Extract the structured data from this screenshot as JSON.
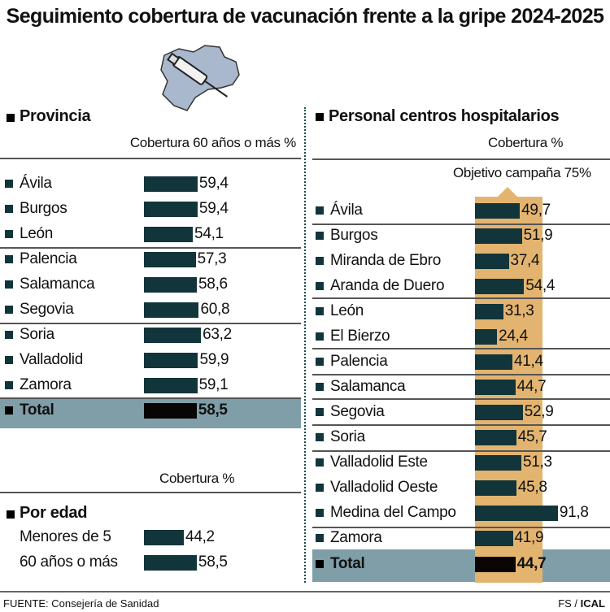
{
  "title": "Seguimiento cobertura de vacunación frente a la gripe 2024-2025",
  "colors": {
    "bar": "#11353a",
    "total_bar": "#0a0505",
    "target_band": "#e3b46f",
    "total_row_bg": "#7f9ea8",
    "map": "#a9b8cc"
  },
  "icon": "map-syringe-icon",
  "chart_data": [
    {
      "type": "bar",
      "orientation": "horizontal",
      "section": "Provincia",
      "subtitle": "Cobertura 60 años o más %",
      "categories": [
        "Ávila",
        "Burgos",
        "León",
        "Palencia",
        "Salamanca",
        "Segovia",
        "Soria",
        "Valladolid",
        "Zamora",
        "Total"
      ],
      "values": [
        59.4,
        59.4,
        54.1,
        57.3,
        58.6,
        60.8,
        63.2,
        59.9,
        59.1,
        58.5
      ],
      "labels": [
        "59,4",
        "59,4",
        "54,1",
        "57,3",
        "58,6",
        "60,8",
        "63,2",
        "59,9",
        "59,1",
        "58,5"
      ]
    },
    {
      "type": "bar",
      "orientation": "horizontal",
      "section": "Por edad",
      "subtitle": "Cobertura %",
      "categories": [
        "Menores de 5",
        "60 años o más"
      ],
      "values": [
        44.2,
        58.5
      ],
      "labels": [
        "44,2",
        "58,5"
      ]
    },
    {
      "type": "bar",
      "orientation": "horizontal",
      "section": "Personal centros hospitalarios",
      "subtitle": "Cobertura %",
      "target_label": "Objetivo campaña 75%",
      "target": 75,
      "categories": [
        "Ávila",
        "Burgos",
        "Miranda de Ebro",
        "Aranda de Duero",
        "León",
        "El Bierzo",
        "Palencia",
        "Salamanca",
        "Segovia",
        "Soria",
        "Valladolid Este",
        "Valladolid Oeste",
        "Medina del Campo",
        "Zamora",
        "Total"
      ],
      "values": [
        49.7,
        51.9,
        37.4,
        54.4,
        31.3,
        24.4,
        41.4,
        44.7,
        52.9,
        45.7,
        51.3,
        45.8,
        91.8,
        41.9,
        44.7
      ],
      "labels": [
        "49,7",
        "51,9",
        "37,4",
        "54,4",
        "31,3",
        "24,4",
        "41,4",
        "44,7",
        "52,9",
        "45,7",
        "51,3",
        "45,8",
        "91,8",
        "41,9",
        "44,7"
      ]
    }
  ],
  "footer": {
    "source": "FUENTE: Consejería de Sanidad",
    "credit_prefix": "FS / ",
    "credit_brand": "ICAL"
  }
}
